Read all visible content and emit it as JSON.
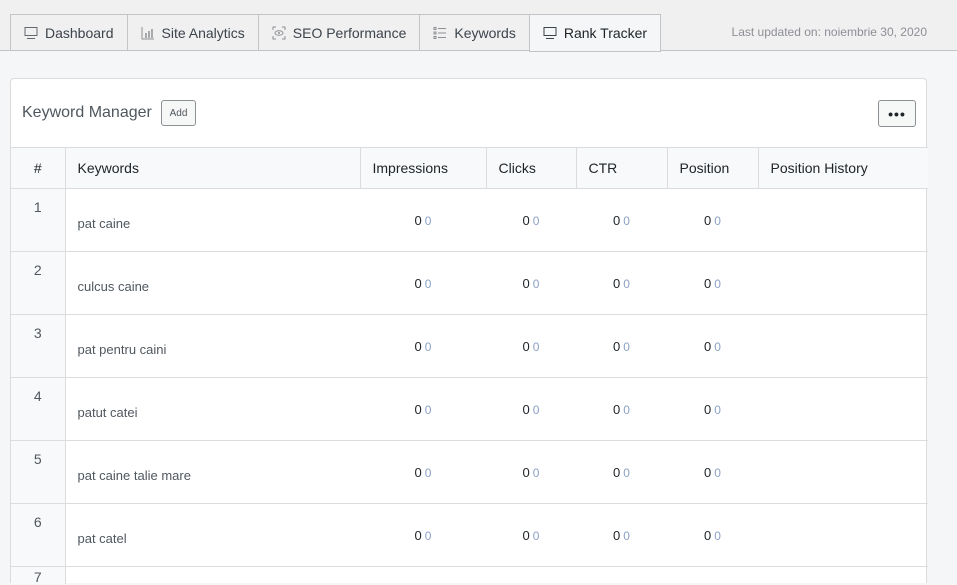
{
  "tabs": [
    {
      "label": "Dashboard",
      "icon": "monitor-icon"
    },
    {
      "label": "Site Analytics",
      "icon": "bar-chart-icon"
    },
    {
      "label": "SEO Performance",
      "icon": "eye-scan-icon"
    },
    {
      "label": "Keywords",
      "icon": "list-icon"
    },
    {
      "label": "Rank Tracker",
      "icon": "monitor-icon",
      "active": true
    }
  ],
  "last_updated": "Last updated on: noiembrie 30, 2020",
  "card": {
    "title": "Keyword Manager",
    "add_label": "Add",
    "more_label": "•••"
  },
  "table": {
    "headers": [
      "#",
      "Keywords",
      "Impressions",
      "Clicks",
      "CTR",
      "Position",
      "Position History"
    ],
    "rows": [
      {
        "n": "1",
        "kw": "pat caine",
        "imp": "0",
        "imp_d": "0",
        "clk": "0",
        "clk_d": "0",
        "ctr": "0",
        "ctr_d": "0",
        "pos": "0",
        "pos_d": "0"
      },
      {
        "n": "2",
        "kw": "culcus caine",
        "imp": "0",
        "imp_d": "0",
        "clk": "0",
        "clk_d": "0",
        "ctr": "0",
        "ctr_d": "0",
        "pos": "0",
        "pos_d": "0"
      },
      {
        "n": "3",
        "kw": "pat pentru caini",
        "imp": "0",
        "imp_d": "0",
        "clk": "0",
        "clk_d": "0",
        "ctr": "0",
        "ctr_d": "0",
        "pos": "0",
        "pos_d": "0"
      },
      {
        "n": "4",
        "kw": "patut catei",
        "imp": "0",
        "imp_d": "0",
        "clk": "0",
        "clk_d": "0",
        "ctr": "0",
        "ctr_d": "0",
        "pos": "0",
        "pos_d": "0"
      },
      {
        "n": "5",
        "kw": "pat caine talie mare",
        "imp": "0",
        "imp_d": "0",
        "clk": "0",
        "clk_d": "0",
        "ctr": "0",
        "ctr_d": "0",
        "pos": "0",
        "pos_d": "0"
      },
      {
        "n": "6",
        "kw": "pat catel",
        "imp": "0",
        "imp_d": "0",
        "clk": "0",
        "clk_d": "0",
        "ctr": "0",
        "ctr_d": "0",
        "pos": "0",
        "pos_d": "0"
      },
      {
        "n": "7",
        "kw": "",
        "imp": "",
        "imp_d": "",
        "clk": "",
        "clk_d": "",
        "ctr": "",
        "ctr_d": "",
        "pos": "",
        "pos_d": ""
      }
    ]
  }
}
